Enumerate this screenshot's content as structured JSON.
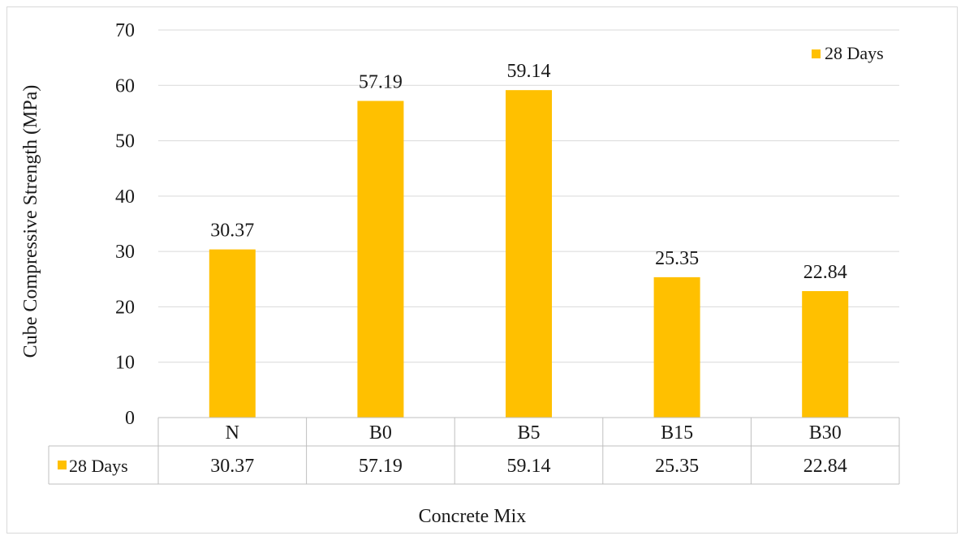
{
  "chart_data": {
    "type": "bar",
    "title": "",
    "xlabel": "Concrete Mix",
    "ylabel": "Cube Compressive Strength (MPa)",
    "categories": [
      "N",
      "B0",
      "B5",
      "B15",
      "B30"
    ],
    "series": [
      {
        "name": "28 Days",
        "values": [
          30.37,
          57.19,
          59.14,
          25.35,
          22.84
        ],
        "color": "#FFC000"
      }
    ],
    "ylim": [
      0,
      70
    ],
    "yticks": [
      0,
      10,
      20,
      30,
      40,
      50,
      60,
      70
    ],
    "grid": true,
    "legend_position": "top-right",
    "data_table": true,
    "value_labels": [
      "30.37",
      "57.19",
      "59.14",
      "25.35",
      "22.84"
    ],
    "tick_labels": [
      "0",
      "10",
      "20",
      "30",
      "40",
      "50",
      "60",
      "70"
    ]
  }
}
